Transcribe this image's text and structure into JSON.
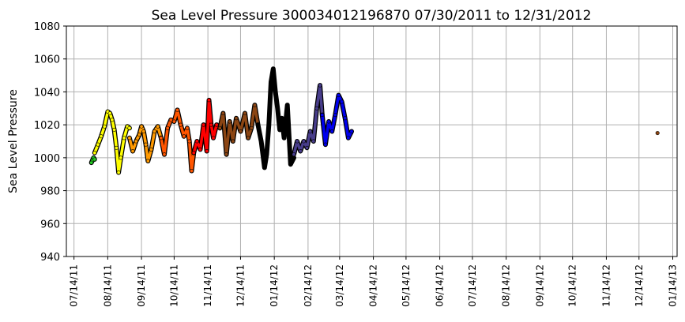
{
  "chart_data": {
    "type": "scatter",
    "title": "Sea Level Pressure 300034012196870  07/30/2011 to 12/31/2012",
    "xlabel": "",
    "ylabel": "Sea Level Pressure",
    "xlim": [
      "2011-07-07",
      "2013-01-18"
    ],
    "ylim": [
      940,
      1080
    ],
    "yticks": [
      940,
      960,
      980,
      1000,
      1020,
      1040,
      1060,
      1080
    ],
    "xticks": [
      "07/14/11",
      "08/14/11",
      "09/14/11",
      "10/14/11",
      "11/14/11",
      "12/14/11",
      "01/14/12",
      "02/14/12",
      "03/14/12",
      "04/14/12",
      "05/14/12",
      "06/14/12",
      "07/14/12",
      "08/14/12",
      "09/14/12",
      "10/14/12",
      "11/14/12",
      "12/14/12",
      "01/14/13"
    ],
    "grid": true,
    "legend": "none",
    "series": [
      {
        "color": "#22cc22",
        "x": [
          "2011-07-30",
          "2011-08-01",
          "2011-08-02"
        ],
        "y": [
          997,
          1000,
          999
        ]
      },
      {
        "color": "#ffff00",
        "x": [
          "2011-08-02",
          "2011-08-05",
          "2011-08-08",
          "2011-08-11",
          "2011-08-14",
          "2011-08-16",
          "2011-08-18",
          "2011-08-20",
          "2011-08-22",
          "2011-08-24",
          "2011-08-26",
          "2011-08-29",
          "2011-09-01",
          "2011-09-03"
        ],
        "y": [
          1003,
          1008,
          1013,
          1019,
          1028,
          1027,
          1023,
          1017,
          1006,
          991,
          1000,
          1012,
          1019,
          1018
        ]
      },
      {
        "color": "#ff9900",
        "x": [
          "2011-09-03",
          "2011-09-06",
          "2011-09-09",
          "2011-09-12",
          "2011-09-14",
          "2011-09-16",
          "2011-09-18",
          "2011-09-20",
          "2011-09-23",
          "2011-09-26",
          "2011-09-29",
          "2011-10-02"
        ],
        "y": [
          1012,
          1004,
          1010,
          1014,
          1019,
          1016,
          1008,
          998,
          1005,
          1016,
          1019,
          1012
        ]
      },
      {
        "color": "#ff5500",
        "x": [
          "2011-10-02",
          "2011-10-05",
          "2011-10-08",
          "2011-10-11",
          "2011-10-14",
          "2011-10-17",
          "2011-10-20",
          "2011-10-23",
          "2011-10-26",
          "2011-10-28",
          "2011-10-30",
          "2011-11-01"
        ],
        "y": [
          1012,
          1002,
          1018,
          1023,
          1022,
          1029,
          1020,
          1013,
          1018,
          1010,
          992,
          1003
        ]
      },
      {
        "color": "#ff0000",
        "x": [
          "2011-11-01",
          "2011-11-04",
          "2011-11-07",
          "2011-11-10",
          "2011-11-13",
          "2011-11-15",
          "2011-11-17",
          "2011-11-19",
          "2011-11-22",
          "2011-11-25"
        ],
        "y": [
          1003,
          1010,
          1005,
          1020,
          1004,
          1035,
          1020,
          1012,
          1020,
          1018
        ]
      },
      {
        "color": "#8b4513",
        "x": [
          "2011-11-25",
          "2011-11-28",
          "2011-12-01",
          "2011-12-04",
          "2011-12-07",
          "2011-12-10",
          "2011-12-14",
          "2011-12-18",
          "2011-12-21",
          "2011-12-24",
          "2011-12-27",
          "2011-12-30"
        ],
        "y": [
          1018,
          1027,
          1002,
          1022,
          1010,
          1024,
          1016,
          1027,
          1012,
          1018,
          1032,
          1020
        ]
      },
      {
        "color": "#000000",
        "x": [
          "2011-12-30",
          "2012-01-02",
          "2012-01-05",
          "2012-01-07",
          "2012-01-09",
          "2012-01-11",
          "2012-01-13",
          "2012-01-15",
          "2012-01-17",
          "2012-01-19",
          "2012-01-21",
          "2012-01-23",
          "2012-01-26",
          "2012-01-29",
          "2012-02-01"
        ],
        "y": [
          1020,
          1010,
          994,
          1002,
          1020,
          1046,
          1054,
          1040,
          1030,
          1017,
          1024,
          1012,
          1032,
          996,
          1000
        ]
      },
      {
        "color": "#483d8b",
        "x": [
          "2012-02-01",
          "2012-02-04",
          "2012-02-07",
          "2012-02-10",
          "2012-02-13",
          "2012-02-16",
          "2012-02-19",
          "2012-02-22",
          "2012-02-25",
          "2012-02-27"
        ],
        "y": [
          1002,
          1010,
          1004,
          1010,
          1006,
          1016,
          1010,
          1030,
          1044,
          1026
        ]
      },
      {
        "color": "#0000ee",
        "x": [
          "2012-02-27",
          "2012-03-01",
          "2012-03-04",
          "2012-03-07",
          "2012-03-10",
          "2012-03-13",
          "2012-03-16",
          "2012-03-19",
          "2012-03-22",
          "2012-03-25"
        ],
        "y": [
          1026,
          1008,
          1022,
          1016,
          1026,
          1038,
          1034,
          1024,
          1012,
          1016
        ]
      },
      {
        "color": "#8b4513",
        "x": [
          "2012-12-31"
        ],
        "y": [
          1015
        ]
      }
    ]
  }
}
